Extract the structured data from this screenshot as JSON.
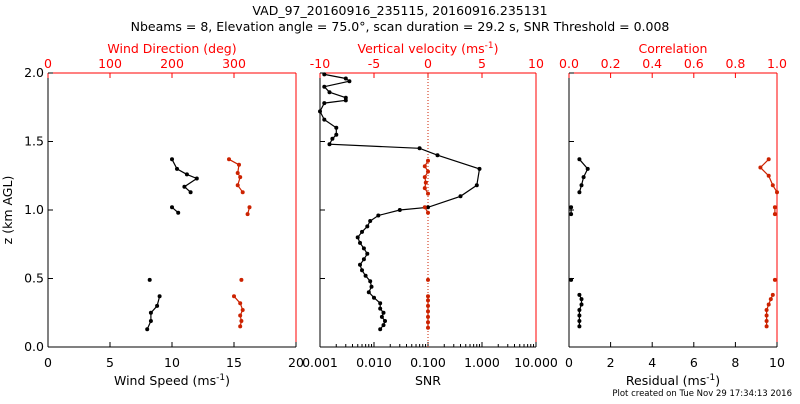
{
  "header": {
    "title_line1": "VAD_97_20160916_235115, 20160916.235131",
    "title_line2": "Nbeams = 8, Elevation angle = 75.0°, scan duration = 29.2 s, SNR Threshold = 0.008"
  },
  "footer": {
    "created": "Plot created on Tue Nov 29 17:34:13 2016"
  },
  "colors": {
    "black": "#000000",
    "red": "#cc2200",
    "axis_red": "#ff0000"
  },
  "chart_data": [
    {
      "type": "line",
      "ylabel": "z (km AGL)",
      "ylim": [
        0,
        2
      ],
      "yticks": [
        "0.0",
        "0.5",
        "1.0",
        "1.5",
        "2.0"
      ],
      "bottom_axis": {
        "label": "Wind Speed (ms",
        "label_sup": "-1",
        "label_end": ")",
        "range": [
          0,
          20
        ],
        "ticks": [
          "0",
          "5",
          "10",
          "15",
          "20"
        ]
      },
      "top_axis": {
        "label": "Wind Direction (deg)",
        "range": [
          0,
          400
        ],
        "ticks": [
          "0",
          "100",
          "200",
          "300"
        ]
      },
      "series": [
        {
          "axis": "bottom",
          "color": "black",
          "segments": [
            [
              [
                8.0,
                0.13
              ],
              [
                8.3,
                0.19
              ],
              [
                8.3,
                0.25
              ],
              [
                8.8,
                0.3
              ],
              [
                9.0,
                0.37
              ]
            ],
            [
              [
                8.2,
                0.49
              ]
            ],
            [
              [
                10.0,
                1.02
              ],
              [
                10.5,
                0.98
              ]
            ],
            [
              [
                10.0,
                1.37
              ],
              [
                10.4,
                1.3
              ],
              [
                11.2,
                1.26
              ],
              [
                12.0,
                1.23
              ],
              [
                11.0,
                1.17
              ],
              [
                11.5,
                1.13
              ]
            ]
          ]
        },
        {
          "axis": "top",
          "color": "red",
          "segments": [
            [
              [
                310,
                0.15
              ],
              [
                312,
                0.19
              ],
              [
                310,
                0.23
              ],
              [
                314,
                0.27
              ],
              [
                310,
                0.32
              ],
              [
                300,
                0.37
              ]
            ],
            [
              [
                312,
                0.49
              ]
            ],
            [
              [
                325,
                1.02
              ],
              [
                322,
                0.97
              ]
            ],
            [
              [
                292,
                1.37
              ],
              [
                308,
                1.33
              ],
              [
                306,
                1.27
              ],
              [
                310,
                1.24
              ],
              [
                306,
                1.18
              ],
              [
                314,
                1.13
              ]
            ]
          ]
        }
      ]
    },
    {
      "type": "line",
      "bottom_axis": {
        "label": "SNR",
        "scale": "log",
        "range": [
          0.001,
          10
        ],
        "ticks": [
          "0.001",
          "0.010",
          "0.100",
          "1.000",
          "10.000"
        ]
      },
      "top_axis": {
        "label": "Vertical velocity (ms",
        "label_sup": "-1",
        "label_end": ")",
        "range": [
          -10,
          10
        ],
        "ticks": [
          "-10",
          "-5",
          "0",
          "5",
          "10"
        ]
      },
      "reference_line": {
        "axis": "top",
        "value": 0,
        "style": "dotted",
        "color": "red"
      },
      "series": [
        {
          "axis": "bottom",
          "color": "black",
          "points": [
            [
              0.013,
              0.13
            ],
            [
              0.015,
              0.16
            ],
            [
              0.016,
              0.19
            ],
            [
              0.014,
              0.22
            ],
            [
              0.015,
              0.25
            ],
            [
              0.013,
              0.28
            ],
            [
              0.013,
              0.32
            ],
            [
              0.01,
              0.36
            ],
            [
              0.008,
              0.4
            ],
            [
              0.009,
              0.44
            ],
            [
              0.0085,
              0.48
            ],
            [
              0.007,
              0.52
            ],
            [
              0.006,
              0.56
            ],
            [
              0.0055,
              0.6
            ],
            [
              0.0065,
              0.64
            ],
            [
              0.0075,
              0.68
            ],
            [
              0.0065,
              0.72
            ],
            [
              0.0055,
              0.76
            ],
            [
              0.005,
              0.8
            ],
            [
              0.006,
              0.84
            ],
            [
              0.0075,
              0.88
            ],
            [
              0.0085,
              0.92
            ],
            [
              0.012,
              0.96
            ],
            [
              0.03,
              1.0
            ],
            [
              0.1,
              1.02
            ],
            [
              0.4,
              1.1
            ],
            [
              0.8,
              1.18
            ],
            [
              0.9,
              1.3
            ],
            [
              0.15,
              1.4
            ],
            [
              0.07,
              1.45
            ],
            [
              0.0015,
              1.48
            ],
            [
              0.0017,
              1.52
            ],
            [
              0.002,
              1.55
            ],
            [
              0.002,
              1.6
            ],
            [
              0.0012,
              1.66
            ],
            [
              0.001,
              1.72
            ],
            [
              0.0012,
              1.78
            ],
            [
              0.003,
              1.8
            ],
            [
              0.003,
              1.82
            ],
            [
              0.0015,
              1.86
            ],
            [
              0.0012,
              1.9
            ],
            [
              0.0035,
              1.94
            ],
            [
              0.003,
              1.96
            ],
            [
              0.0012,
              1.99
            ]
          ]
        },
        {
          "axis": "top",
          "color": "red",
          "segments": [
            [
              [
                0.0,
                0.14
              ],
              [
                0.0,
                0.18
              ],
              [
                0.0,
                0.22
              ],
              [
                0.0,
                0.26
              ],
              [
                0.0,
                0.3
              ],
              [
                0.0,
                0.34
              ],
              [
                0.0,
                0.37
              ]
            ],
            [
              [
                0.0,
                0.49
              ]
            ],
            [
              [
                -0.3,
                1.02
              ],
              [
                0.0,
                0.98
              ]
            ],
            [
              [
                0.0,
                1.36
              ],
              [
                -0.3,
                1.32
              ],
              [
                0.0,
                1.28
              ],
              [
                -0.3,
                1.24
              ],
              [
                -0.2,
                1.2
              ],
              [
                -0.3,
                1.16
              ],
              [
                0.0,
                1.12
              ]
            ]
          ]
        }
      ]
    },
    {
      "type": "line",
      "bottom_axis": {
        "label": "Residual (ms",
        "label_sup": "-1",
        "label_end": ")",
        "range": [
          0,
          10
        ],
        "ticks": [
          "0",
          "2",
          "4",
          "6",
          "8",
          "10"
        ]
      },
      "top_axis": {
        "label": "Correlation",
        "range": [
          0,
          1
        ],
        "ticks": [
          "0.0",
          "0.2",
          "0.4",
          "0.6",
          "0.8",
          "1.0"
        ]
      },
      "series": [
        {
          "axis": "bottom",
          "color": "black",
          "segments": [
            [
              [
                0.5,
                0.15
              ],
              [
                0.5,
                0.19
              ],
              [
                0.5,
                0.23
              ],
              [
                0.5,
                0.27
              ],
              [
                0.6,
                0.31
              ],
              [
                0.6,
                0.35
              ],
              [
                0.5,
                0.38
              ]
            ],
            [
              [
                0.1,
                0.49
              ]
            ],
            [
              [
                0.1,
                1.02
              ],
              [
                0.1,
                0.97
              ]
            ],
            [
              [
                0.5,
                1.37
              ],
              [
                0.9,
                1.3
              ],
              [
                0.7,
                1.24
              ],
              [
                0.6,
                1.18
              ],
              [
                0.5,
                1.13
              ]
            ]
          ]
        },
        {
          "axis": "top",
          "color": "red",
          "segments": [
            [
              [
                0.95,
                0.15
              ],
              [
                0.95,
                0.19
              ],
              [
                0.95,
                0.23
              ],
              [
                0.95,
                0.27
              ],
              [
                0.96,
                0.31
              ],
              [
                0.97,
                0.35
              ],
              [
                0.98,
                0.38
              ]
            ],
            [
              [
                0.99,
                0.49
              ]
            ],
            [
              [
                0.99,
                1.02
              ],
              [
                0.99,
                0.97
              ]
            ],
            [
              [
                0.96,
                1.37
              ],
              [
                0.92,
                1.31
              ],
              [
                0.96,
                1.25
              ],
              [
                0.98,
                1.18
              ],
              [
                1.0,
                1.13
              ]
            ]
          ]
        }
      ]
    }
  ]
}
